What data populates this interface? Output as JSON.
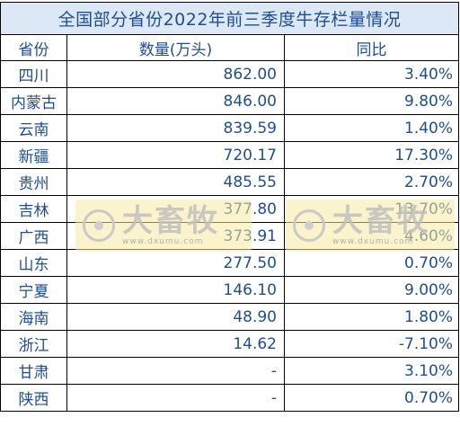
{
  "title": "全国部分省份2022年前三季度牛存栏量情况",
  "headers": {
    "province": "省份",
    "count": "数量(万头)",
    "yoy": "同比"
  },
  "rows": [
    {
      "province": "四川",
      "count": "862.00",
      "yoy": "3.40%"
    },
    {
      "province": "内蒙古",
      "count": "846.00",
      "yoy": "9.80%"
    },
    {
      "province": "云南",
      "count": "839.59",
      "yoy": "1.40%"
    },
    {
      "province": "新疆",
      "count": "720.17",
      "yoy": "17.30%"
    },
    {
      "province": "贵州",
      "count": "485.55",
      "yoy": "2.70%"
    },
    {
      "province": "吉林",
      "count": "377.80",
      "yoy": "13.70%"
    },
    {
      "province": "广西",
      "count": "373.91",
      "yoy": "4.60%"
    },
    {
      "province": "山东",
      "count": "277.50",
      "yoy": "0.70%"
    },
    {
      "province": "宁夏",
      "count": "146.10",
      "yoy": "9.00%"
    },
    {
      "province": "海南",
      "count": "48.90",
      "yoy": "1.80%"
    },
    {
      "province": "浙江",
      "count": "14.62",
      "yoy": "-7.10%"
    },
    {
      "province": "甘肃",
      "count": "-",
      "yoy": "3.10%"
    },
    {
      "province": "陕西",
      "count": "-",
      "yoy": "0.70%"
    }
  ],
  "watermark": {
    "brand": "大畜牧",
    "url": "www.dxumu.com"
  },
  "colors": {
    "text": "#1f4e8c",
    "title_bg": "#dde8f6",
    "border": "#000000",
    "watermark_bg": "#f5eaa0"
  }
}
